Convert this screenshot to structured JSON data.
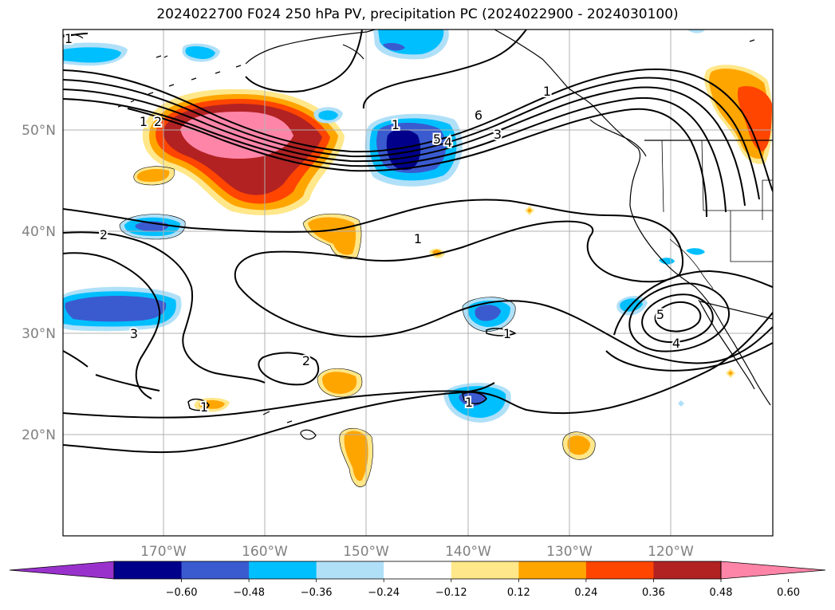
{
  "title": "2024022700 F024 250 hPa PV, precipitation PC (2024022900 - 2024030100)",
  "lat_labels": [
    "50°N",
    "40°N",
    "30°N",
    "20°N"
  ],
  "lon_labels": [
    "170°W",
    "160°W",
    "150°W",
    "140°W",
    "130°W",
    "120°W"
  ],
  "colorbar": {
    "ticks": [
      "−0.60",
      "−0.48",
      "−0.36",
      "−0.24",
      "−0.12",
      "0.12",
      "0.24",
      "0.36",
      "0.48",
      "0.60"
    ],
    "colors": [
      "#9932cc",
      "#00008b",
      "#3a5bd0",
      "#00bfff",
      "#b0e0f8",
      "#ffffff",
      "#ffe78a",
      "#ffa500",
      "#ff4500",
      "#b22222",
      "#ff85a8"
    ]
  },
  "contour_labels": [
    "1",
    "2",
    "1",
    "1",
    "6",
    "5",
    "4",
    "3",
    "1",
    "2",
    "3",
    "1",
    "1",
    "2",
    "1",
    "1",
    "5",
    "4"
  ],
  "colors": {
    "pv_contour": "#000000",
    "coast": "#000000",
    "grid": "#b0b0b0"
  }
}
